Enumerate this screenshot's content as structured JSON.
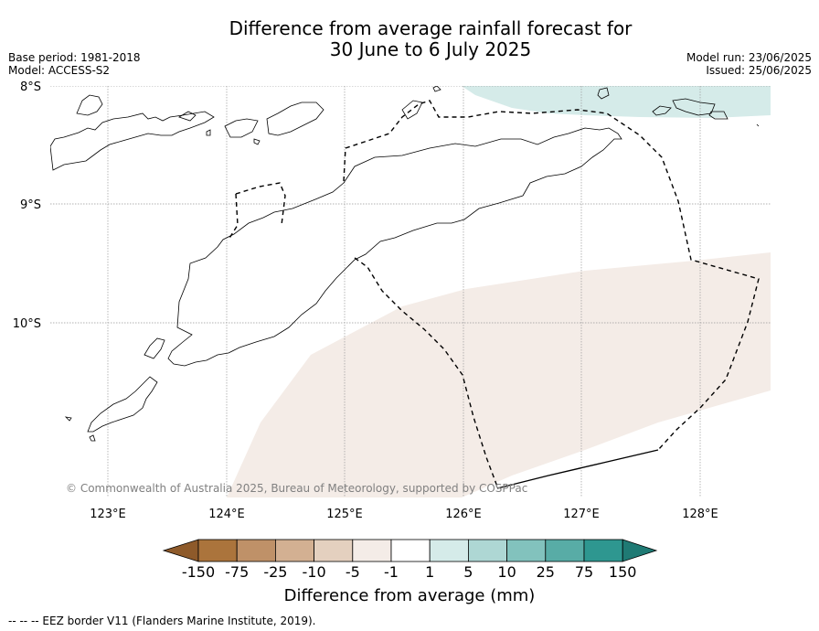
{
  "title": {
    "line1": "Difference from average rainfall forecast for",
    "line2": "30 June to 6 July 2025"
  },
  "meta": {
    "base_period": "Base period: 1981-2018",
    "model": "Model: ACCESS-S2",
    "model_run": "Model run: 23/06/2025",
    "issued": "Issued: 25/06/2025"
  },
  "map": {
    "lat_labels": [
      "8°S",
      "9°S",
      "10°S"
    ],
    "lon_labels": [
      "123°E",
      "124°E",
      "125°E",
      "126°E",
      "127°E",
      "128°E"
    ],
    "copyright": "© Commonwealth of Australia 2025, Bureau of Meteorology, supported by COSPPac",
    "colors": {
      "wetter_1_5": "#d5ebe9",
      "drier_minus1_minus5": "#f4ece7",
      "coast": "#000000",
      "grid": "#999999"
    }
  },
  "colorbar": {
    "ticks": [
      "-150",
      "-75",
      "-25",
      "-10",
      "-5",
      "-1",
      "1",
      "5",
      "10",
      "25",
      "75",
      "150"
    ],
    "colors": [
      "#8e5a2a",
      "#ab743c",
      "#bf9168",
      "#d3b092",
      "#e4d0bf",
      "#f4ece7",
      "#ffffff",
      "#d5ebe9",
      "#aed7d4",
      "#82c2bd",
      "#58aca6",
      "#2e9790",
      "#1f7a74"
    ],
    "label": "Difference from average (mm)"
  },
  "footer": "--  --  -- EEZ border V11 (Flanders Marine Institute, 2019)."
}
